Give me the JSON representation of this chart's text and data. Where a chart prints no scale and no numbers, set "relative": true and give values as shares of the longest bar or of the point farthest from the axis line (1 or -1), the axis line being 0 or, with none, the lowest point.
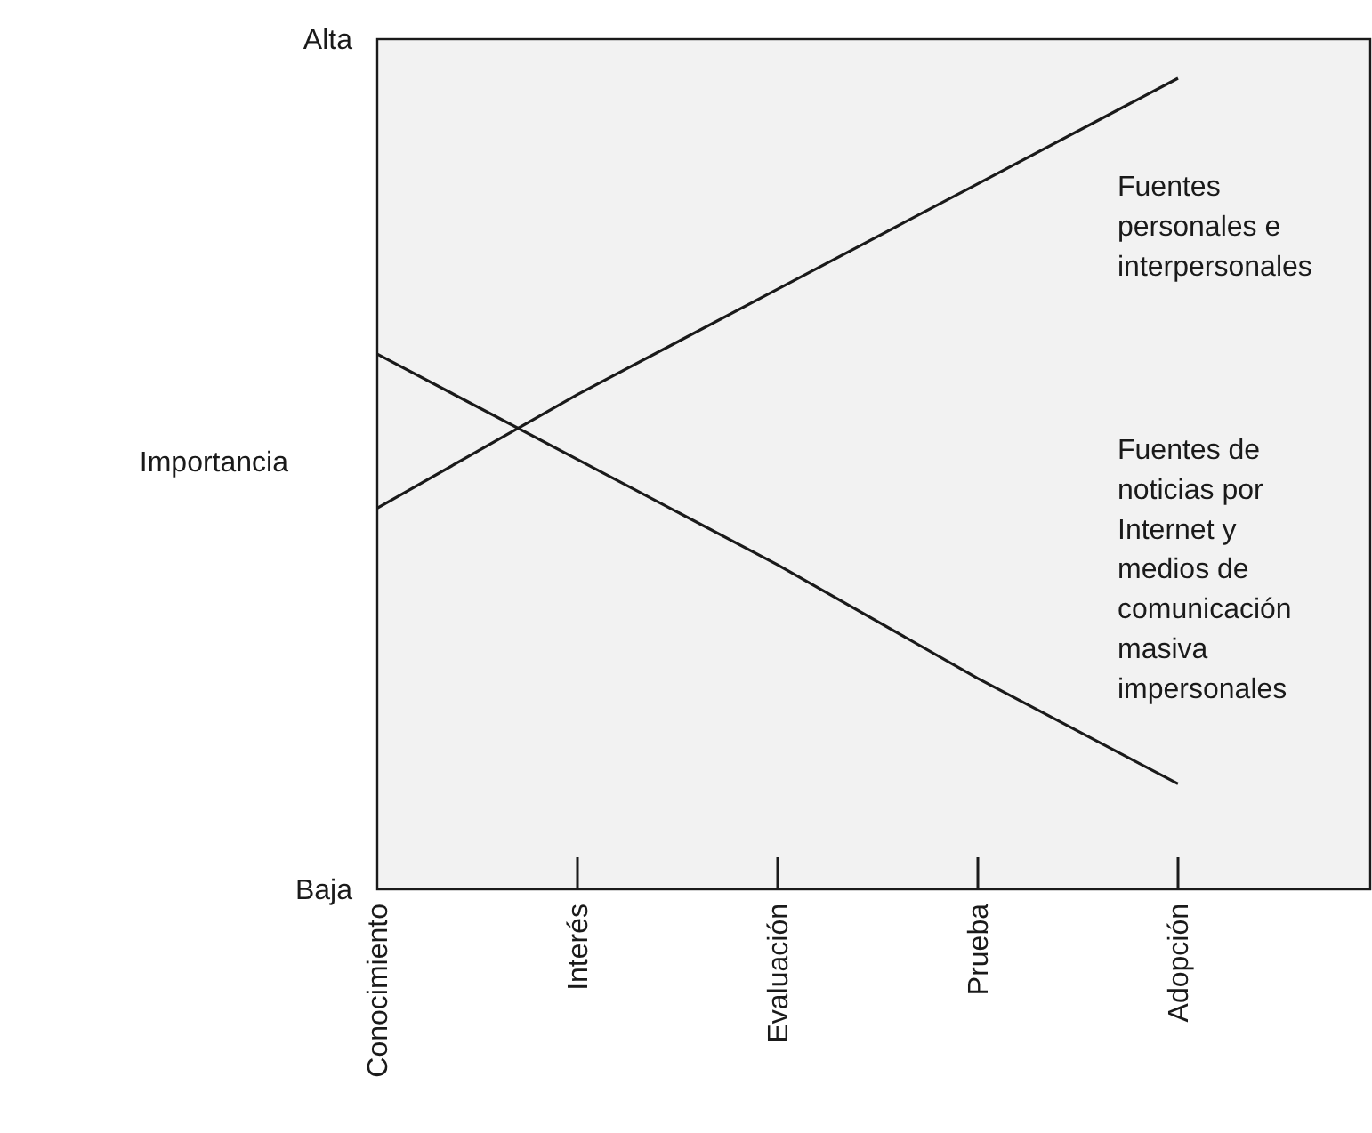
{
  "chart_data": {
    "type": "line",
    "ylabel": "Importancia",
    "relative": true,
    "categories": [
      "Conocimiento",
      "Interés",
      "Evaluación",
      "Prueba",
      "Adopción"
    ],
    "annotations": [
      "Alta",
      "Baja"
    ],
    "marker": "none",
    "line_style": "solid",
    "series": [
      {
        "name": "Fuentes personales e interpersonales",
        "color": "#1a1a1a",
        "values": [
          0.47,
          0.61,
          0.74,
          0.87,
          1
        ]
      },
      {
        "name": "Fuentes de noticias por Internet y medios de comunicación masiva impersonales",
        "color": "#1a1a1a",
        "values": [
          0.66,
          0.53,
          0.4,
          0.26,
          0.13
        ]
      }
    ]
  }
}
